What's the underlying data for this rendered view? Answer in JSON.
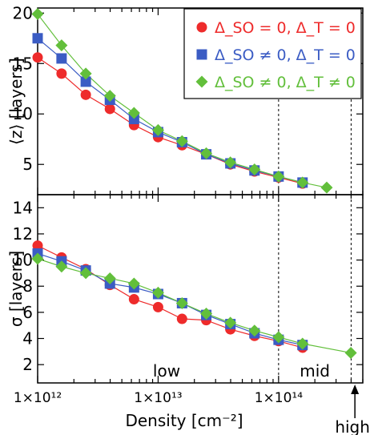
{
  "chart_data": [
    {
      "type": "line",
      "x_scale": "log",
      "xlim": [
        1000000000000.0,
        500000000000000.0
      ],
      "ylim": [
        2,
        20.5
      ],
      "ylabel": "⟨z⟩ [layers]",
      "y_ticks": [
        5,
        10,
        15,
        20
      ],
      "x": [
        1000000000000.0,
        1580000000000.0,
        2510000000000.0,
        3980000000000.0,
        6310000000000.0,
        10000000000000.0,
        15800000000000.0,
        25100000000000.0,
        39800000000000.0,
        63100000000000.0,
        100000000000000.0,
        158000000000000.0,
        251000000000000.0,
        398000000000000.0
      ],
      "series": [
        {
          "name": "Δ_SO = 0, Δ_T = 0",
          "color": "#ee2b2b",
          "marker": "circle",
          "values": [
            15.6,
            14.0,
            11.9,
            10.5,
            8.9,
            7.7,
            6.9,
            6.0,
            5.0,
            4.3,
            3.7,
            3.1,
            null,
            null
          ]
        },
        {
          "name": "Δ_SO ≠ 0, Δ_T = 0",
          "color": "#3b5cc4",
          "marker": "square",
          "values": [
            17.5,
            15.5,
            13.2,
            11.4,
            9.5,
            8.2,
            7.2,
            6.0,
            5.1,
            4.4,
            3.8,
            3.2,
            null,
            null
          ]
        },
        {
          "name": "Δ_SO ≠ 0, Δ_T ≠ 0",
          "color": "#62bf3b",
          "marker": "diamond",
          "values": [
            19.9,
            16.8,
            14.0,
            11.8,
            10.1,
            8.4,
            7.3,
            6.1,
            5.2,
            4.5,
            3.8,
            3.2,
            2.7,
            null
          ]
        }
      ],
      "legend": "top-right"
    },
    {
      "type": "line",
      "x_scale": "log",
      "xlim": [
        1000000000000.0,
        500000000000000.0
      ],
      "ylim": [
        0.6,
        15
      ],
      "xlabel": "Density [cm⁻²]",
      "ylabel": "σ [layers]",
      "y_ticks": [
        2,
        4,
        6,
        8,
        10,
        12,
        14
      ],
      "x_ticks": [
        1000000000000.0,
        10000000000000.0,
        100000000000000.0
      ],
      "x_tick_labels": [
        "1×10¹²",
        "1×10¹³",
        "1×10¹⁴"
      ],
      "x": [
        1000000000000.0,
        1580000000000.0,
        2510000000000.0,
        3980000000000.0,
        6310000000000.0,
        10000000000000.0,
        15800000000000.0,
        25100000000000.0,
        39800000000000.0,
        63100000000000.0,
        100000000000000.0,
        158000000000000.0,
        251000000000000.0,
        398000000000000.0
      ],
      "series": [
        {
          "name": "Δ_SO = 0, Δ_T = 0",
          "color": "#ee2b2b",
          "marker": "circle",
          "values": [
            11.1,
            10.2,
            9.3,
            8.1,
            7.0,
            6.4,
            5.5,
            5.4,
            4.7,
            4.2,
            3.8,
            3.3,
            null,
            null
          ]
        },
        {
          "name": "Δ_SO ≠ 0, Δ_T = 0",
          "color": "#3b5cc4",
          "marker": "square",
          "values": [
            10.5,
            9.9,
            9.2,
            8.2,
            7.9,
            7.4,
            6.7,
            5.8,
            5.1,
            4.4,
            3.9,
            3.5,
            null,
            null
          ]
        },
        {
          "name": "Δ_SO ≠ 0, Δ_T ≠ 0",
          "color": "#62bf3b",
          "marker": "diamond",
          "values": [
            10.1,
            9.5,
            9.0,
            8.6,
            8.2,
            7.5,
            6.7,
            5.9,
            5.2,
            4.6,
            4.1,
            3.6,
            null,
            2.9
          ]
        }
      ],
      "region_dividers": [
        100000000000000.0,
        400000000000000.0
      ],
      "region_labels": [
        "low",
        "mid",
        "high"
      ]
    }
  ]
}
